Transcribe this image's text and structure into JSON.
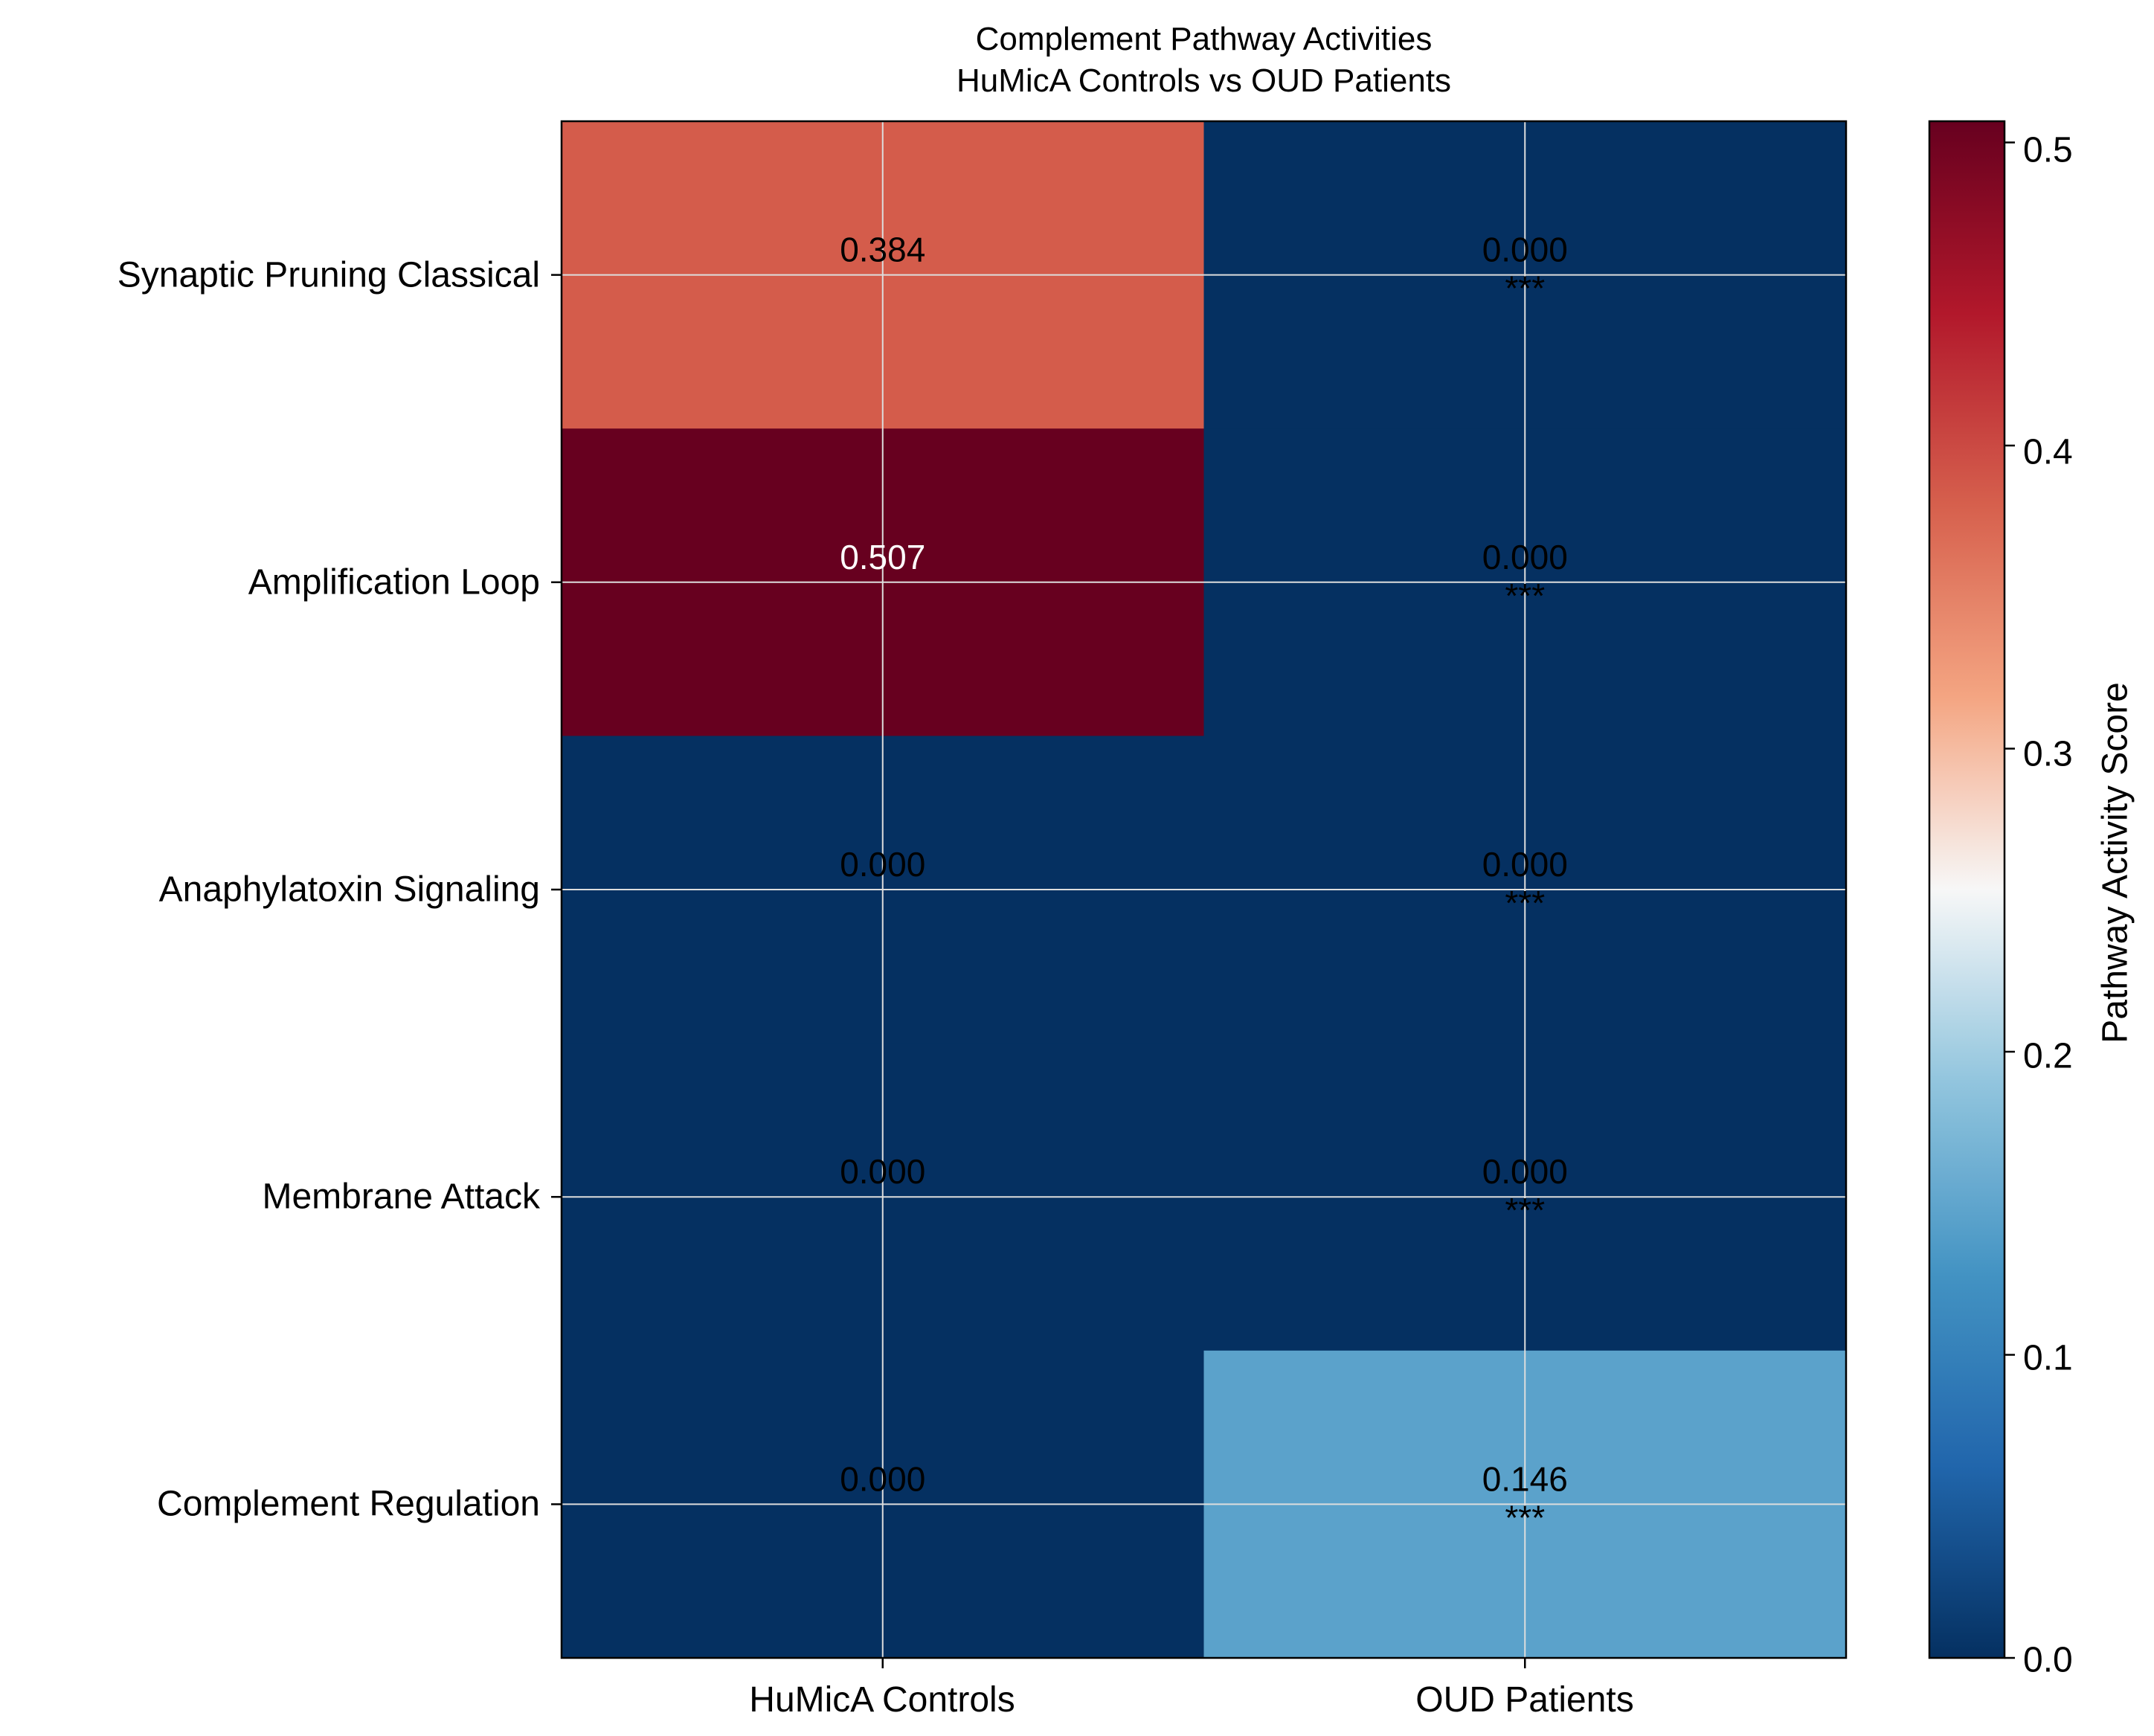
{
  "chart_data": {
    "type": "heatmap",
    "title_lines": [
      "Complement Pathway Activities",
      "HuMicA Controls vs OUD Patients"
    ],
    "columns": [
      "HuMicA Controls",
      "OUD Patients"
    ],
    "rows": [
      "Synaptic Pruning Classical",
      "Amplification Loop",
      "Anaphylatoxin Signaling",
      "Membrane Attack",
      "Complement Regulation"
    ],
    "values": [
      [
        0.384,
        0.0
      ],
      [
        0.507,
        0.0
      ],
      [
        0.0,
        0.0
      ],
      [
        0.0,
        0.0
      ],
      [
        0.0,
        0.146
      ]
    ],
    "value_labels": [
      [
        "0.384",
        "0.000"
      ],
      [
        "0.507",
        "0.000"
      ],
      [
        "0.000",
        "0.000"
      ],
      [
        "0.000",
        "0.000"
      ],
      [
        "0.000",
        "0.146"
      ]
    ],
    "significance": [
      [
        "",
        "***"
      ],
      [
        "",
        "***"
      ],
      [
        "",
        "***"
      ],
      [
        "",
        "***"
      ],
      [
        "",
        "***"
      ]
    ],
    "colormap": "RdBu_r",
    "vmin": 0.0,
    "vmax": 0.507,
    "colorbar": {
      "label": "Pathway Activity Score",
      "ticks": [
        0.0,
        0.1,
        0.2,
        0.3,
        0.4,
        0.5
      ],
      "tick_labels": [
        "0.0",
        "0.1",
        "0.2",
        "0.3",
        "0.4",
        "0.5"
      ]
    },
    "grid": true
  },
  "colors": {
    "grid": "#dddddd",
    "frame": "#000000",
    "dark_text_on": "#000000",
    "light_text_on_dark_red": "#ffffff"
  }
}
